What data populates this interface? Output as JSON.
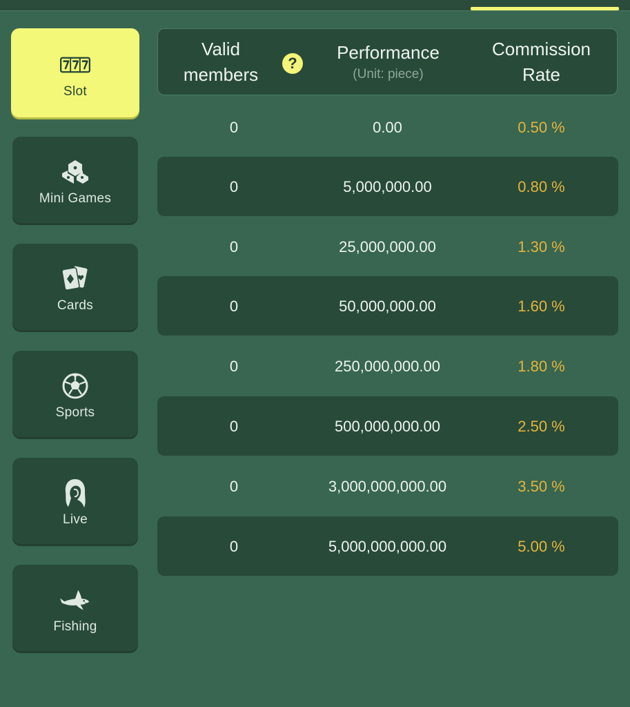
{
  "tabs": [
    {
      "label": "Slot",
      "icon": "slot-777-icon",
      "active": true
    },
    {
      "label": "Mini Games",
      "icon": "mini-games-icon",
      "active": false
    },
    {
      "label": "Cards",
      "icon": "cards-icon",
      "active": false
    },
    {
      "label": "Sports",
      "icon": "soccer-ball-icon",
      "active": false
    },
    {
      "label": "Live",
      "icon": "live-dealer-icon",
      "active": false
    },
    {
      "label": "Fishing",
      "icon": "shark-icon",
      "active": false
    }
  ],
  "table": {
    "headers": {
      "valid_members_line1": "Valid",
      "valid_members_line2": "members",
      "help_icon": "?",
      "performance": "Performance",
      "performance_unit": "(Unit: piece)",
      "commission_line1": "Commission",
      "commission_line2": "Rate"
    },
    "rows": [
      {
        "valid_members": "0",
        "performance": "0.00",
        "rate": "0.50 %"
      },
      {
        "valid_members": "0",
        "performance": "5,000,000.00",
        "rate": "0.80 %"
      },
      {
        "valid_members": "0",
        "performance": "25,000,000.00",
        "rate": "1.30 %"
      },
      {
        "valid_members": "0",
        "performance": "50,000,000.00",
        "rate": "1.60 %"
      },
      {
        "valid_members": "0",
        "performance": "250,000,000.00",
        "rate": "1.80 %"
      },
      {
        "valid_members": "0",
        "performance": "500,000,000.00",
        "rate": "2.50 %"
      },
      {
        "valid_members": "0",
        "performance": "3,000,000,000.00",
        "rate": "3.50 %"
      },
      {
        "valid_members": "0",
        "performance": "5,000,000,000.00",
        "rate": "5.00 %"
      }
    ]
  },
  "colors": {
    "background": "#386650",
    "panel": "#284a39",
    "accent": "#f4f878",
    "rate_text": "#e6b43c"
  }
}
